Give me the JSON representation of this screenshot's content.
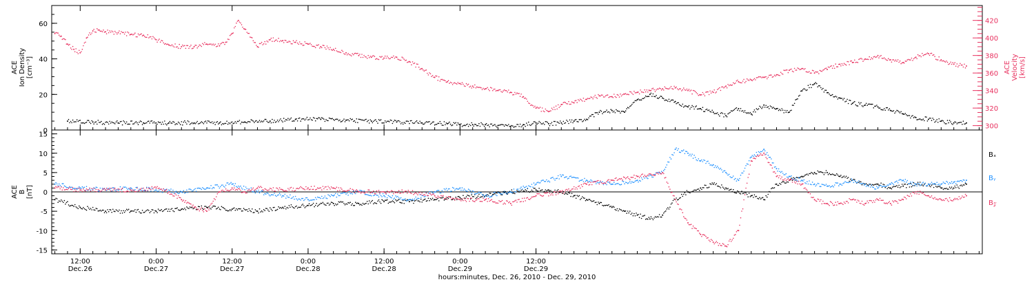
{
  "chart_data": [
    {
      "type": "scatter",
      "panel": "top",
      "left_axis_label": [
        "ACE",
        "Ion Density",
        "[cm⁻³]"
      ],
      "right_axis_label": [
        "ACE",
        "Velocity",
        "[km/s]"
      ],
      "left_ylim": [
        0,
        70
      ],
      "left_yticks": [
        "0",
        "20",
        "40",
        "60"
      ],
      "right_ylim": [
        295,
        437
      ],
      "right_yticks": [
        "300",
        "320",
        "340",
        "360",
        "380",
        "400",
        "420"
      ],
      "colors": {
        "density": "#000000",
        "velocity": "#e8315f"
      },
      "series": [
        {
          "axis": "left",
          "color": "#000000",
          "x": [
            -14,
            -10,
            -6,
            -2,
            2,
            6,
            10,
            14,
            18,
            22,
            26,
            30,
            34,
            38,
            42,
            46,
            48,
            50,
            52,
            54,
            56,
            58,
            60,
            62,
            64,
            66,
            68,
            70,
            72,
            74,
            76,
            78,
            80,
            82,
            84,
            86,
            88,
            90,
            92,
            94,
            96,
            98,
            100,
            102,
            104,
            106,
            108,
            110,
            112,
            114,
            116,
            118,
            120,
            122,
            124,
            126,
            128
          ],
          "y": [
            5,
            4.5,
            4,
            4,
            4,
            4,
            4,
            4.5,
            5,
            6,
            6,
            5.5,
            5,
            4.5,
            4,
            3.5,
            3,
            3,
            3,
            2.5,
            2,
            3,
            4,
            3.5,
            4,
            5,
            6,
            10,
            11,
            10,
            17,
            20,
            18,
            16,
            13,
            12,
            10,
            8,
            12,
            9,
            14,
            12,
            10,
            22,
            26,
            21,
            18,
            15,
            14,
            13,
            11,
            9,
            7,
            6,
            5,
            4,
            4
          ]
        },
        {
          "axis": "right",
          "color": "#e8315f",
          "x": [
            -16,
            -15,
            -14,
            -13,
            -12,
            -11,
            -10,
            -9,
            -8,
            -6,
            -4,
            -2,
            0,
            2,
            4,
            6,
            8,
            10,
            11,
            12,
            13,
            14,
            16,
            18,
            20,
            22,
            24,
            26,
            28,
            30,
            32,
            34,
            36,
            38,
            40,
            42,
            44,
            46,
            48,
            50,
            52,
            54,
            56,
            58,
            60,
            62,
            64,
            66,
            68,
            70,
            72,
            74,
            76,
            78,
            80,
            82,
            84,
            86,
            88,
            90,
            92,
            94,
            96,
            98,
            100,
            102,
            104,
            106,
            108,
            110,
            112,
            114,
            116,
            118,
            120,
            122,
            124,
            126,
            128
          ],
          "y": [
            405,
            402,
            393,
            387,
            383,
            400,
            408,
            409,
            407,
            406,
            404,
            403,
            398,
            392,
            390,
            390,
            393,
            391,
            395,
            405,
            420,
            410,
            390,
            398,
            397,
            395,
            393,
            390,
            387,
            383,
            380,
            378,
            377,
            378,
            373,
            365,
            355,
            350,
            348,
            345,
            342,
            340,
            338,
            333,
            320,
            316,
            324,
            326,
            330,
            334,
            333,
            336,
            338,
            340,
            342,
            343,
            340,
            335,
            338,
            345,
            350,
            352,
            355,
            358,
            363,
            365,
            360,
            364,
            370,
            372,
            376,
            380,
            375,
            372,
            378,
            382,
            375,
            370,
            368
          ]
        }
      ]
    },
    {
      "type": "scatter",
      "panel": "bottom",
      "left_axis_label": [
        "ACE",
        "B",
        "[nT]"
      ],
      "ylim": [
        -16,
        16
      ],
      "yticks": [
        "-15",
        "-10",
        "-5",
        "0",
        "5",
        "10",
        "15"
      ],
      "zero_line": true,
      "legend": [
        "Bₓ",
        "Bᵧ",
        "B𝓏"
      ],
      "legend_position": "right",
      "colors": {
        "bx": "#000000",
        "by": "#1e90ff",
        "bz": "#e8315f"
      },
      "series": [
        {
          "name": "Bₓ",
          "color": "#000000",
          "x": [
            -16,
            -12,
            -8,
            -4,
            0,
            4,
            8,
            12,
            16,
            20,
            24,
            28,
            32,
            36,
            40,
            44,
            48,
            52,
            56,
            60,
            62,
            64,
            66,
            68,
            70,
            72,
            74,
            76,
            78,
            80,
            82,
            84,
            86,
            88,
            90,
            92,
            94,
            96,
            98,
            100,
            102,
            104,
            106,
            108,
            110,
            112,
            114,
            116,
            118,
            120,
            122,
            124,
            126,
            128
          ],
          "y": [
            -2,
            -4,
            -5,
            -5,
            -5,
            -4.5,
            -4,
            -4.5,
            -5,
            -4,
            -3.5,
            -3,
            -3,
            -2.5,
            -2.5,
            -2,
            -1.5,
            -1,
            0,
            0.5,
            0.5,
            0,
            -1,
            -2,
            -3,
            -4,
            -5,
            -6,
            -7,
            -6,
            -2,
            0,
            1,
            2,
            1,
            0,
            -1,
            -2,
            2,
            3,
            4,
            5,
            5,
            4,
            3,
            2,
            2,
            1,
            1.5,
            2,
            2,
            1,
            1,
            2
          ]
        },
        {
          "name": "Bᵧ",
          "color": "#1e90ff",
          "x": [
            -16,
            -12,
            -8,
            -4,
            0,
            4,
            8,
            12,
            16,
            20,
            24,
            28,
            32,
            36,
            40,
            44,
            48,
            52,
            56,
            60,
            64,
            68,
            72,
            76,
            80,
            82,
            84,
            86,
            88,
            90,
            92,
            94,
            96,
            98,
            100,
            102,
            104,
            106,
            108,
            110,
            112,
            114,
            116,
            118,
            120,
            122,
            124,
            126,
            128
          ],
          "y": [
            2,
            1,
            0.5,
            1,
            0.5,
            0,
            1,
            2,
            0,
            -1,
            -2,
            -1,
            0,
            -1,
            -2,
            0,
            1,
            -1,
            0,
            2,
            4,
            3,
            2,
            3,
            5,
            11,
            10,
            8,
            7,
            5,
            3,
            9,
            11,
            6,
            4,
            3,
            2,
            1.5,
            2,
            3,
            2,
            1,
            2,
            3,
            2,
            2,
            2,
            2.5,
            3
          ]
        },
        {
          "name": "B𝓏",
          "color": "#e8315f",
          "x": [
            -16,
            -12,
            -8,
            -4,
            0,
            2,
            4,
            6,
            8,
            10,
            12,
            14,
            16,
            20,
            24,
            28,
            32,
            36,
            40,
            44,
            48,
            52,
            56,
            60,
            64,
            68,
            72,
            76,
            80,
            82,
            84,
            86,
            88,
            90,
            92,
            94,
            96,
            98,
            100,
            102,
            104,
            106,
            108,
            110,
            112,
            114,
            116,
            118,
            120,
            122,
            124,
            126,
            128
          ],
          "y": [
            1,
            0.5,
            0.5,
            0.5,
            1,
            0,
            -2,
            -4,
            -5,
            0,
            1,
            0,
            1,
            0.5,
            1,
            1,
            0,
            0,
            0,
            -1,
            -2,
            -2,
            -3,
            -1,
            0,
            2,
            3,
            4,
            5,
            -2,
            -8,
            -11,
            -13,
            -14,
            -10,
            8,
            10,
            4,
            3,
            2,
            -2,
            -3,
            -3,
            -2,
            -3,
            -2,
            -3,
            -2,
            0,
            -1,
            -2,
            -2,
            -1
          ]
        }
      ]
    }
  ],
  "x_axis": {
    "range_hours": [
      -16.5,
      130.5
    ],
    "ticks": [
      {
        "hour": -12,
        "time": "12:00",
        "date": "Dec.26"
      },
      {
        "hour": 0,
        "time": "0:00",
        "date": "Dec.27"
      },
      {
        "hour": 12,
        "time": "12:00",
        "date": "Dec.27"
      },
      {
        "hour": 24,
        "time": "0:00",
        "date": "Dec.28"
      },
      {
        "hour": 36,
        "time": "12:00",
        "date": "Dec.28"
      },
      {
        "hour": 48,
        "time": "0:00",
        "date": "Dec.29"
      },
      {
        "hour": 60,
        "time": "12:00",
        "date": "Dec.29"
      }
    ],
    "label": "hours:minutes, Dec. 26, 2010 - Dec. 29, 2010"
  }
}
